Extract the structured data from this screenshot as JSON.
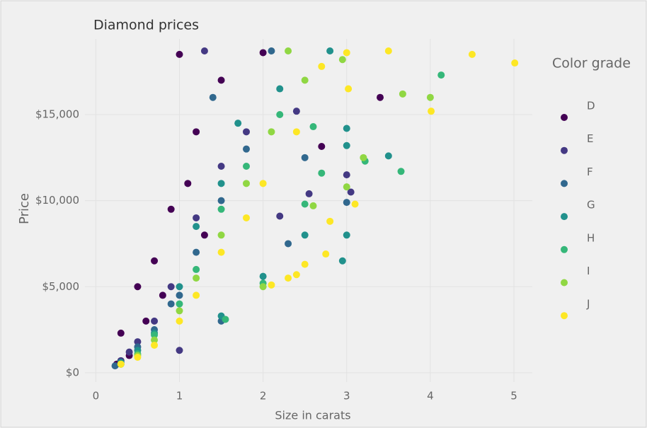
{
  "chart_data": {
    "type": "scatter",
    "title": "Diamond prices",
    "xlabel": "Size in carats",
    "ylabel": "Price",
    "legend_title": "Color grade",
    "legend": "right",
    "grid": true,
    "xlim": [
      -0.13,
      5.22
    ],
    "ylim": [
      -540,
      19400
    ],
    "xticks": [
      0,
      1,
      2,
      3,
      4,
      5
    ],
    "yticks": [
      {
        "value": 0,
        "label": "$0"
      },
      {
        "value": 5000,
        "label": "$5,000"
      },
      {
        "value": 10000,
        "label": "$10,000"
      },
      {
        "value": 15000,
        "label": "$15,000"
      }
    ],
    "series": [
      {
        "name": "D",
        "color": "#440154",
        "x": [
          3.4,
          2.7,
          1.0,
          0.5,
          0.7,
          0.3,
          0.25,
          1.2,
          0.9,
          1.5,
          2.0,
          1.1,
          0.4,
          0.6,
          0.8,
          1.3
        ],
        "values": [
          16000,
          13150,
          18500,
          5000,
          6500,
          2300,
          500,
          14000,
          9500,
          17000,
          18600,
          11000,
          1000,
          3000,
          4500,
          8000
        ]
      },
      {
        "name": "E",
        "color": "#443983",
        "x": [
          3.0,
          3.05,
          2.55,
          1.0,
          2.4,
          0.3,
          0.5,
          0.7,
          0.9,
          1.2,
          1.5,
          1.3,
          2.2,
          0.4,
          1.8
        ],
        "values": [
          11500,
          10500,
          10400,
          1300,
          15200,
          700,
          1800,
          3000,
          5000,
          9000,
          12000,
          18700,
          9100,
          1200,
          14000
        ]
      },
      {
        "name": "F",
        "color": "#31688e",
        "x": [
          3.0,
          2.1,
          1.5,
          0.23,
          0.5,
          0.7,
          1.0,
          1.2,
          1.5,
          1.8,
          2.5,
          2.3,
          0.9,
          1.4
        ],
        "values": [
          9900,
          18700,
          3000,
          400,
          1500,
          2500,
          4500,
          7000,
          10000,
          13000,
          12500,
          7500,
          4000,
          16000
        ]
      },
      {
        "name": "G",
        "color": "#21918c",
        "x": [
          3.0,
          3.0,
          2.95,
          3.5,
          2.8,
          2.5,
          3.0,
          2.0,
          1.5,
          0.3,
          0.5,
          0.7,
          1.0,
          1.2,
          1.5,
          1.7,
          2.2
        ],
        "values": [
          13200,
          14200,
          6500,
          12600,
          18700,
          8000,
          8000,
          5600,
          3300,
          600,
          1300,
          2300,
          5000,
          8500,
          11000,
          14500,
          16500
        ]
      },
      {
        "name": "H",
        "color": "#35b779",
        "x": [
          4.13,
          3.65,
          3.22,
          2.7,
          2.5,
          1.55,
          2.0,
          0.3,
          0.5,
          0.7,
          1.0,
          1.2,
          1.5,
          1.8,
          2.2,
          2.6
        ],
        "values": [
          17300,
          11700,
          12300,
          11600,
          9800,
          3100,
          5200,
          500,
          1100,
          2200,
          4000,
          6000,
          9500,
          12000,
          15000,
          14300
        ]
      },
      {
        "name": "I",
        "color": "#90d743",
        "x": [
          3.67,
          4.0,
          3.2,
          2.0,
          2.95,
          3.0,
          2.6,
          0.3,
          0.5,
          0.7,
          1.0,
          1.2,
          1.5,
          1.8,
          2.1,
          2.5,
          2.3
        ],
        "values": [
          16200,
          16000,
          12500,
          5000,
          18200,
          10800,
          9700,
          500,
          1000,
          1900,
          3600,
          5500,
          8000,
          11000,
          14000,
          17000,
          18700
        ]
      },
      {
        "name": "J",
        "color": "#fde725",
        "x": [
          5.01,
          4.5,
          4.01,
          3.5,
          3.0,
          3.1,
          2.75,
          2.5,
          2.1,
          2.3,
          2.4,
          3.02,
          0.3,
          0.5,
          0.7,
          1.0,
          1.2,
          1.5,
          1.8,
          2.0,
          2.4,
          2.8,
          2.7
        ],
        "values": [
          18000,
          18500,
          15200,
          18700,
          18600,
          9800,
          6900,
          6300,
          5100,
          5500,
          5700,
          16500,
          500,
          900,
          1600,
          3000,
          4500,
          7000,
          9000,
          11000,
          14000,
          8800,
          17800
        ]
      }
    ]
  }
}
